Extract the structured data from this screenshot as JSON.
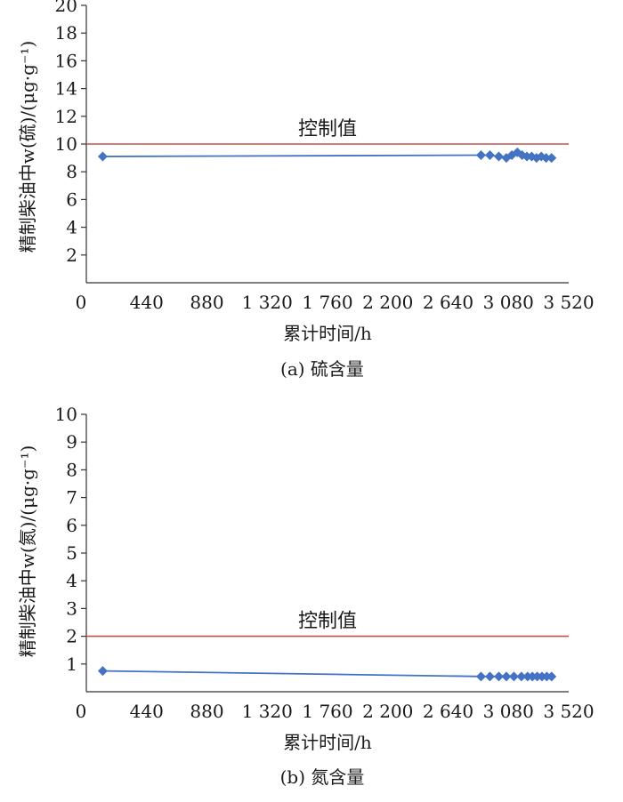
{
  "colors": {
    "series": "#4472C4",
    "control": "#C0504D",
    "axis": "#333333"
  },
  "chart_data": [
    {
      "type": "line",
      "caption": "(a) 硫含量",
      "xlabel": "累计时间/h",
      "ylabel": "精制柴油中w(硫)/(μg·g⁻¹)",
      "xlim": [
        0,
        3520
      ],
      "ylim": [
        0,
        20
      ],
      "xticks": [
        0,
        440,
        880,
        1320,
        1760,
        2200,
        2640,
        3080,
        3520
      ],
      "xtick_labels": [
        "0",
        "440",
        "880",
        "1 320",
        "1 760",
        "2 200",
        "2 640",
        "3 080",
        "3 520"
      ],
      "yticks": [
        2,
        4,
        6,
        8,
        10,
        12,
        14,
        16,
        18,
        20
      ],
      "ytick_labels": [
        "2",
        "4",
        "6",
        "8",
        "10",
        "12",
        "14",
        "16",
        "18",
        "20"
      ],
      "control": {
        "label": "控制值",
        "value": 10
      },
      "series": [
        {
          "x": [
            120,
            2880,
            2945,
            3010,
            3065,
            3105,
            3145,
            3180,
            3215,
            3250,
            3285,
            3320,
            3355,
            3395
          ],
          "y": [
            9.1,
            9.2,
            9.2,
            9.1,
            9.0,
            9.2,
            9.4,
            9.2,
            9.1,
            9.1,
            9.0,
            9.1,
            9.0,
            9.0
          ]
        }
      ]
    },
    {
      "type": "line",
      "caption": "(b) 氮含量",
      "xlabel": "累计时间/h",
      "ylabel": "精制柴油中w(氮)/(μg·g⁻¹)",
      "xlim": [
        0,
        3520
      ],
      "ylim": [
        0,
        10
      ],
      "xticks": [
        0,
        440,
        880,
        1320,
        1760,
        2200,
        2640,
        3080,
        3520
      ],
      "xtick_labels": [
        "0",
        "440",
        "880",
        "1 320",
        "1 760",
        "2 200",
        "2 640",
        "3 080",
        "3 520"
      ],
      "yticks": [
        1,
        2,
        3,
        4,
        5,
        6,
        7,
        8,
        9,
        10
      ],
      "ytick_labels": [
        "1",
        "2",
        "3",
        "4",
        "5",
        "6",
        "7",
        "8",
        "9",
        "10"
      ],
      "control": {
        "label": "控制值",
        "value": 2
      },
      "series": [
        {
          "x": [
            120,
            2880,
            2945,
            3010,
            3065,
            3120,
            3175,
            3220,
            3255,
            3290,
            3325,
            3360,
            3395
          ],
          "y": [
            0.75,
            0.55,
            0.55,
            0.55,
            0.55,
            0.55,
            0.55,
            0.55,
            0.55,
            0.55,
            0.55,
            0.55,
            0.55
          ]
        }
      ]
    }
  ]
}
